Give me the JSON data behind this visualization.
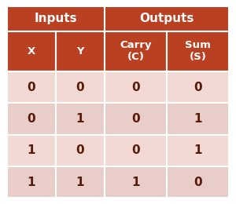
{
  "header_row1_left": "Inputs",
  "header_row1_right": "Outputs",
  "header_row2": [
    "X",
    "Y",
    "Carry\n(C)",
    "Sum\n(S)"
  ],
  "data_rows": [
    [
      "0",
      "0",
      "0",
      "0"
    ],
    [
      "0",
      "1",
      "0",
      "1"
    ],
    [
      "1",
      "0",
      "0",
      "1"
    ],
    [
      "1",
      "1",
      "1",
      "0"
    ]
  ],
  "header_bg": "#b94020",
  "row_bg_odd": "#f2d9d4",
  "row_bg_even": "#e8cdc8",
  "header_text_color": "#ffffff",
  "data_text_color": "#5a1a0a",
  "border_color": "#ffffff",
  "figure_bg": "#ffffff"
}
